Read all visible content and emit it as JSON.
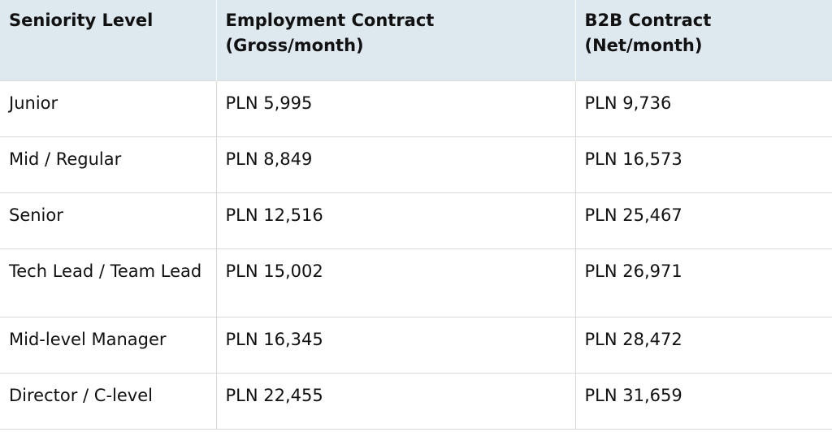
{
  "table": {
    "headers": [
      {
        "line1": "Seniority Level",
        "line2": ""
      },
      {
        "line1": "Employment Contract",
        "line2": "(Gross/month)"
      },
      {
        "line1": "B2B Contract",
        "line2": "(Net/month)"
      }
    ],
    "rows": [
      {
        "level": "Junior",
        "employment": "PLN 5,995",
        "b2b": "PLN 9,736"
      },
      {
        "level": "Mid / Regular",
        "employment": "PLN 8,849",
        "b2b": "PLN 16,573"
      },
      {
        "level": "Senior",
        "employment": "PLN 12,516",
        "b2b": "PLN 25,467"
      },
      {
        "level": "Tech Lead / Team Lead",
        "employment": "PLN 15,002",
        "b2b": "PLN 26,971"
      },
      {
        "level": "Mid-level Manager",
        "employment": "PLN 16,345",
        "b2b": "PLN 28,472"
      },
      {
        "level": "Director / C-level",
        "employment": "PLN 22,455",
        "b2b": "PLN 31,659"
      }
    ]
  }
}
